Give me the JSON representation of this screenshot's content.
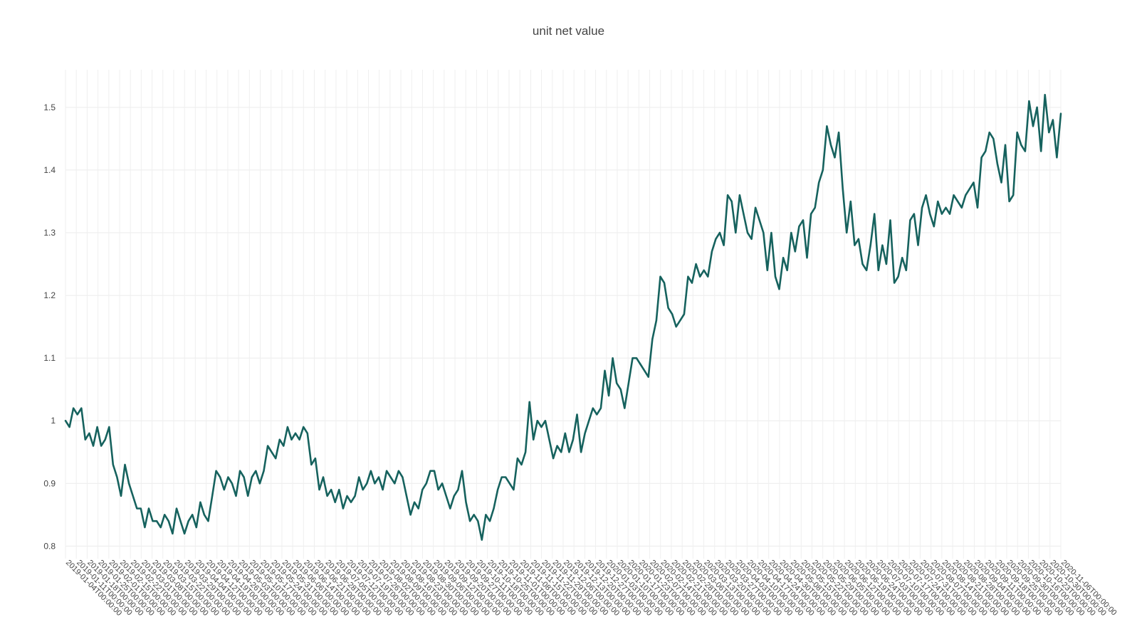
{
  "chart_data": {
    "type": "line",
    "title": "unit net value",
    "xlabel": "",
    "ylabel": "",
    "x_start": "2019-01-04T00:00:00",
    "x_end": "2020-11-06T00:00:00",
    "x_tick_labels": [
      "2019-01-04T00:00:00",
      "2019-01-11T00:00:00",
      "2019-01-18T00:00:00",
      "2019-01-25T00:00:00",
      "2019-02-01T00:00:00",
      "2019-02-15T00:00:00",
      "2019-02-22T00:00:00",
      "2019-03-01T00:00:00",
      "2019-03-08T00:00:00",
      "2019-03-15T00:00:00",
      "2019-03-22T00:00:00",
      "2019-03-29T00:00:00",
      "2019-04-04T00:00:00",
      "2019-04-12T00:00:00",
      "2019-04-19T00:00:00",
      "2019-04-26T00:00:00",
      "2019-05-03T00:00:00",
      "2019-05-10T00:00:00",
      "2019-05-17T00:00:00",
      "2019-05-24T00:00:00",
      "2019-05-31T00:00:00",
      "2019-06-06T00:00:00",
      "2019-06-14T00:00:00",
      "2019-06-21T00:00:00",
      "2019-06-28T00:00:00",
      "2019-07-05T00:00:00",
      "2019-07-12T00:00:00",
      "2019-07-19T00:00:00",
      "2019-07-26T00:00:00",
      "2019-08-02T00:00:00",
      "2019-08-09T00:00:00",
      "2019-08-16T00:00:00",
      "2019-08-23T00:00:00",
      "2019-08-30T00:00:00",
      "2019-09-06T00:00:00",
      "2019-09-12T00:00:00",
      "2019-09-20T00:00:00",
      "2019-09-27T00:00:00",
      "2019-10-11T00:00:00",
      "2019-10-18T00:00:00",
      "2019-10-25T00:00:00",
      "2019-11-01T00:00:00",
      "2019-11-08T00:00:00",
      "2019-11-15T00:00:00",
      "2019-11-22T00:00:00",
      "2019-11-29T00:00:00",
      "2019-12-06T00:00:00",
      "2019-12-13T00:00:00",
      "2019-12-20T00:00:00",
      "2019-12-27T00:00:00",
      "2020-01-03T00:00:00",
      "2020-01-10T00:00:00",
      "2020-01-17T00:00:00",
      "2020-01-23T00:00:00",
      "2020-02-07T00:00:00",
      "2020-02-14T00:00:00",
      "2020-02-21T00:00:00",
      "2020-02-28T00:00:00",
      "2020-03-06T00:00:00",
      "2020-03-13T00:00:00",
      "2020-03-20T00:00:00",
      "2020-03-27T00:00:00",
      "2020-04-03T00:00:00",
      "2020-04-10T00:00:00",
      "2020-04-17T00:00:00",
      "2020-04-24T00:00:00",
      "2020-04-30T00:00:00",
      "2020-05-08T00:00:00",
      "2020-05-15T00:00:00",
      "2020-05-22T00:00:00",
      "2020-05-29T00:00:00",
      "2020-06-05T00:00:00",
      "2020-06-12T00:00:00",
      "2020-06-19T00:00:00",
      "2020-06-24T00:00:00",
      "2020-07-03T00:00:00",
      "2020-07-10T00:00:00",
      "2020-07-17T00:00:00",
      "2020-07-24T00:00:00",
      "2020-07-31T00:00:00",
      "2020-08-07T00:00:00",
      "2020-08-14T00:00:00",
      "2020-08-21T00:00:00",
      "2020-08-28T00:00:00",
      "2020-09-04T00:00:00",
      "2020-09-11T00:00:00",
      "2020-09-18T00:00:00",
      "2020-09-25T00:00:00",
      "2020-09-30T00:00:00",
      "2020-10-16T00:00:00",
      "2020-10-23T00:00:00",
      "2020-10-30T00:00:00",
      "2020-11-06T00:00:00"
    ],
    "yticks": [
      "0.8",
      "0.9",
      "1",
      "1.1",
      "1.2",
      "1.3",
      "1.4",
      "1.5"
    ],
    "ylim": [
      0.78,
      1.56
    ],
    "grid": true,
    "legend": "none",
    "series": [
      {
        "color": "#16625e",
        "values": [
          1.0,
          0.99,
          1.02,
          1.01,
          1.02,
          0.97,
          0.98,
          0.96,
          0.99,
          0.96,
          0.97,
          0.99,
          0.93,
          0.91,
          0.88,
          0.93,
          0.9,
          0.88,
          0.86,
          0.86,
          0.83,
          0.86,
          0.84,
          0.84,
          0.83,
          0.85,
          0.84,
          0.82,
          0.86,
          0.84,
          0.82,
          0.84,
          0.85,
          0.83,
          0.87,
          0.85,
          0.84,
          0.88,
          0.92,
          0.91,
          0.89,
          0.91,
          0.9,
          0.88,
          0.92,
          0.91,
          0.88,
          0.91,
          0.92,
          0.9,
          0.92,
          0.96,
          0.95,
          0.94,
          0.97,
          0.96,
          0.99,
          0.97,
          0.98,
          0.97,
          0.99,
          0.98,
          0.93,
          0.94,
          0.89,
          0.91,
          0.88,
          0.89,
          0.87,
          0.89,
          0.86,
          0.88,
          0.87,
          0.88,
          0.91,
          0.89,
          0.9,
          0.92,
          0.9,
          0.91,
          0.89,
          0.92,
          0.91,
          0.9,
          0.92,
          0.91,
          0.88,
          0.85,
          0.87,
          0.86,
          0.89,
          0.9,
          0.92,
          0.92,
          0.89,
          0.9,
          0.88,
          0.86,
          0.88,
          0.89,
          0.92,
          0.87,
          0.84,
          0.85,
          0.84,
          0.81,
          0.85,
          0.84,
          0.86,
          0.89,
          0.91,
          0.91,
          0.9,
          0.89,
          0.94,
          0.93,
          0.95,
          1.03,
          0.97,
          1.0,
          0.99,
          1.0,
          0.97,
          0.94,
          0.96,
          0.95,
          0.98,
          0.95,
          0.97,
          1.01,
          0.95,
          0.98,
          1.0,
          1.02,
          1.01,
          1.02,
          1.08,
          1.04,
          1.1,
          1.06,
          1.05,
          1.02,
          1.06,
          1.1,
          1.1,
          1.09,
          1.08,
          1.07,
          1.13,
          1.16,
          1.23,
          1.22,
          1.18,
          1.17,
          1.15,
          1.16,
          1.17,
          1.23,
          1.22,
          1.25,
          1.23,
          1.24,
          1.23,
          1.27,
          1.29,
          1.3,
          1.28,
          1.36,
          1.35,
          1.3,
          1.36,
          1.33,
          1.3,
          1.29,
          1.34,
          1.32,
          1.3,
          1.24,
          1.3,
          1.23,
          1.21,
          1.26,
          1.24,
          1.3,
          1.27,
          1.31,
          1.32,
          1.26,
          1.33,
          1.34,
          1.38,
          1.4,
          1.47,
          1.44,
          1.42,
          1.46,
          1.37,
          1.3,
          1.35,
          1.28,
          1.29,
          1.25,
          1.24,
          1.28,
          1.33,
          1.24,
          1.28,
          1.25,
          1.32,
          1.22,
          1.23,
          1.26,
          1.24,
          1.32,
          1.33,
          1.28,
          1.34,
          1.36,
          1.33,
          1.31,
          1.35,
          1.33,
          1.34,
          1.33,
          1.36,
          1.35,
          1.34,
          1.36,
          1.37,
          1.38,
          1.34,
          1.42,
          1.43,
          1.46,
          1.45,
          1.41,
          1.38,
          1.44,
          1.35,
          1.36,
          1.46,
          1.44,
          1.43,
          1.51,
          1.47,
          1.5,
          1.43,
          1.52,
          1.46,
          1.48,
          1.42,
          1.49
        ]
      }
    ]
  }
}
